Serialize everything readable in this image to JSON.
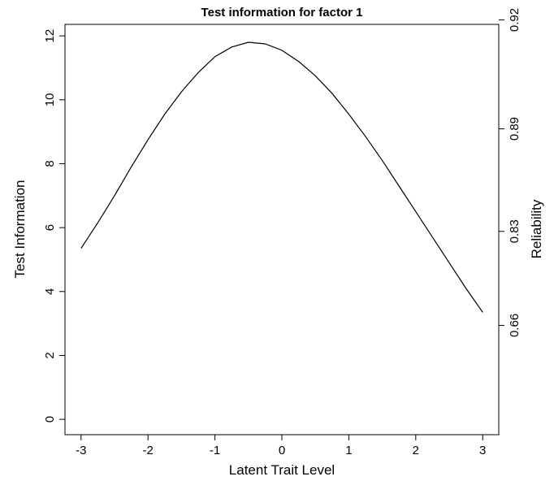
{
  "chart_data": {
    "type": "line",
    "title": "Test information for factor    1",
    "x_label": "Latent Trait Level",
    "y_label": "Test Information",
    "y2_label": "Reliability",
    "x": [
      -3,
      -2.75,
      -2.5,
      -2.25,
      -2,
      -1.75,
      -1.5,
      -1.25,
      -1,
      -0.75,
      -0.5,
      -0.25,
      0,
      0.25,
      0.5,
      0.75,
      1,
      1.25,
      1.5,
      1.75,
      2,
      2.25,
      2.5,
      2.75,
      3
    ],
    "series": [
      {
        "name": "Test information",
        "color": "#000000",
        "values": [
          5.35,
          6.15,
          7.0,
          7.9,
          8.75,
          9.55,
          10.25,
          10.85,
          11.35,
          11.65,
          11.8,
          11.75,
          11.55,
          11.2,
          10.75,
          10.2,
          9.55,
          8.85,
          8.1,
          7.3,
          6.5,
          5.7,
          4.9,
          4.1,
          3.35
        ]
      }
    ],
    "xlim": [
      -3.24,
      3.24
    ],
    "xticks": [
      -3,
      -2,
      -1,
      0,
      1,
      2,
      3
    ],
    "ylim": [
      -0.48,
      12.36
    ],
    "yticks": [
      0,
      2,
      4,
      6,
      8,
      10,
      12
    ],
    "y2ticks": [
      0.66,
      0.83,
      0.89,
      0.92
    ]
  }
}
